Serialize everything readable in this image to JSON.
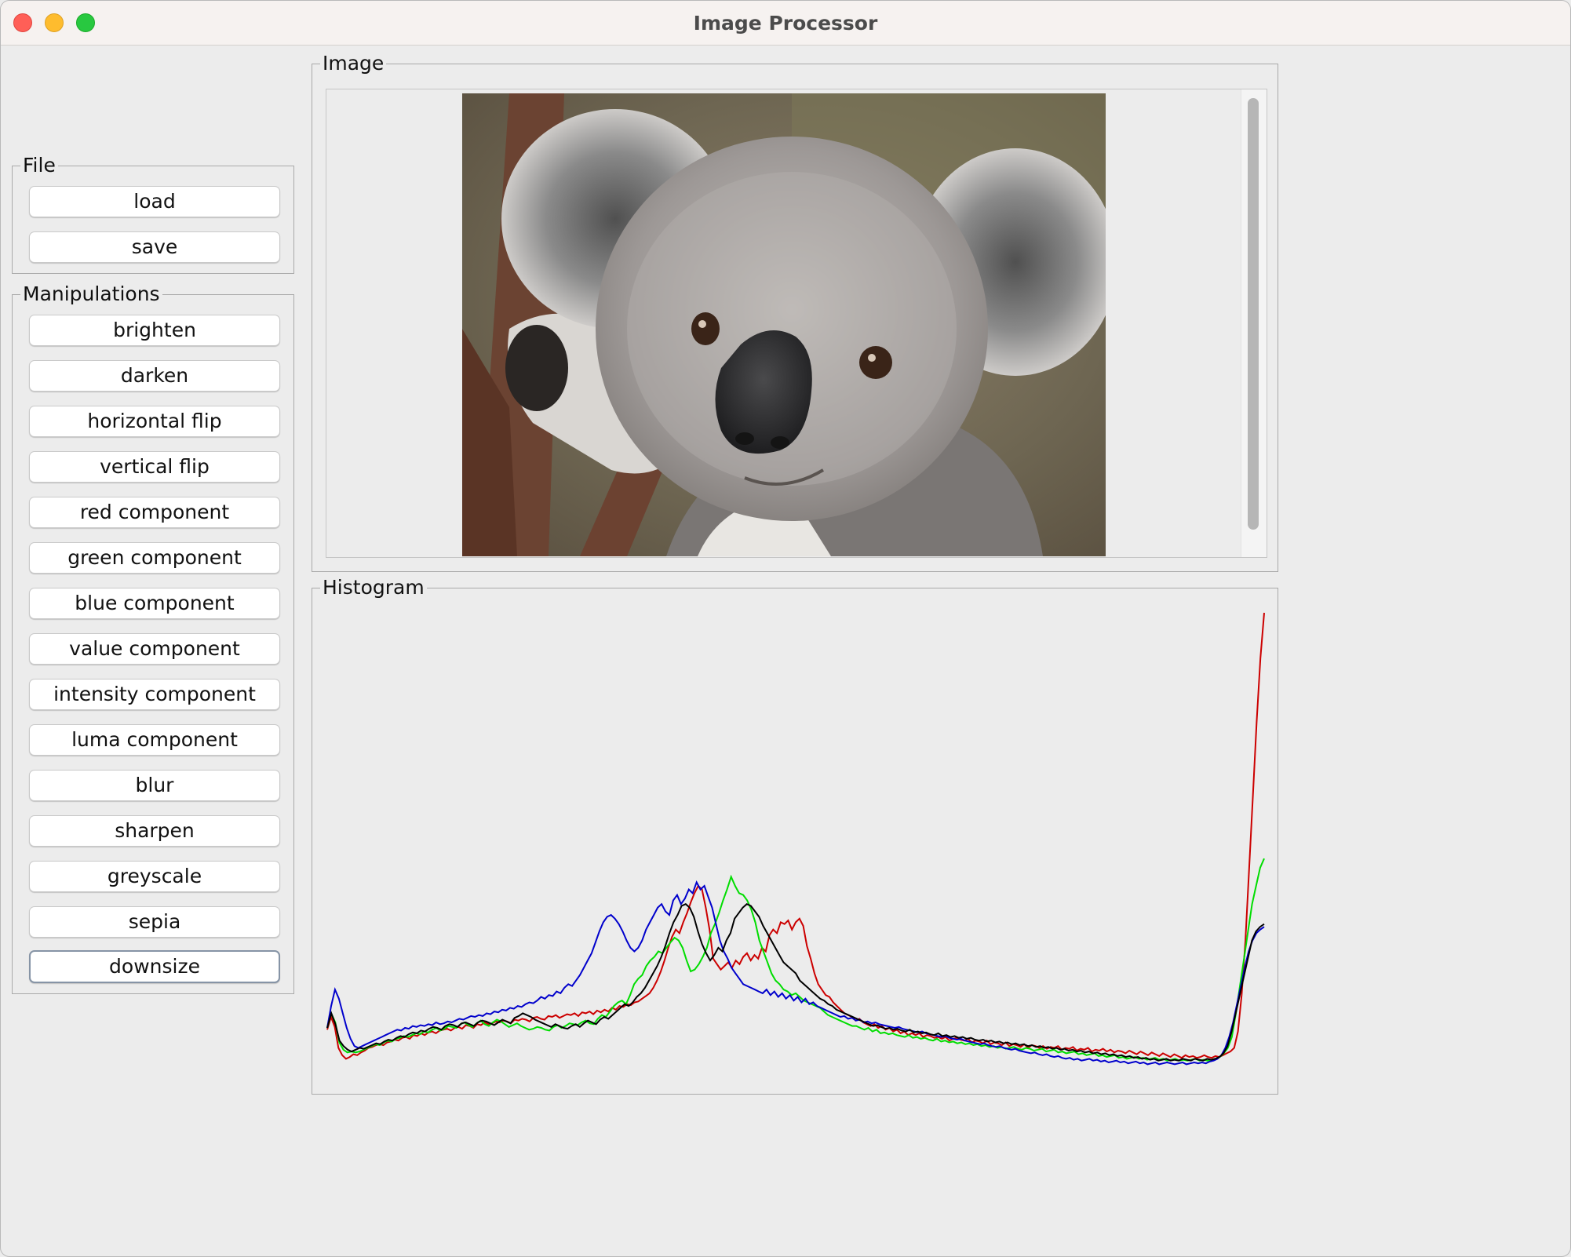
{
  "window": {
    "title": "Image Processor"
  },
  "file_group": {
    "title": "File",
    "buttons": [
      "load",
      "save"
    ]
  },
  "manipulations_group": {
    "title": "Manipulations",
    "buttons": [
      "brighten",
      "darken",
      "horizontal flip",
      "vertical flip",
      "red component",
      "green component",
      "blue component",
      "value component",
      "intensity component",
      "luma component",
      "blur",
      "sharpen",
      "greyscale",
      "sepia",
      "downsize"
    ],
    "focused": "downsize"
  },
  "image_panel": {
    "title": "Image",
    "image_subject": "koala photograph"
  },
  "histogram_panel": {
    "title": "Histogram"
  },
  "chart_data": {
    "type": "line",
    "xlim": [
      0,
      255
    ],
    "series": [
      {
        "color": "#cc0000",
        "values": [
          42,
          56,
          45,
          22,
          14,
          10,
          12,
          15,
          14,
          17,
          19,
          22,
          23,
          25,
          26,
          25,
          28,
          29,
          31,
          30,
          33,
          34,
          32,
          36,
          35,
          38,
          36,
          39,
          40,
          38,
          41,
          42,
          43,
          41,
          44,
          45,
          43,
          47,
          46,
          44,
          48,
          47,
          50,
          48,
          49,
          51,
          50,
          52,
          51,
          49,
          53,
          52,
          54,
          53,
          51,
          55,
          56,
          54,
          53,
          57,
          56,
          58,
          55,
          57,
          59,
          58,
          60,
          57,
          61,
          60,
          62,
          59,
          63,
          61,
          64,
          62,
          66,
          64,
          68,
          67,
          70,
          69,
          72,
          73,
          76,
          79,
          82,
          88,
          96,
          106,
          118,
          132,
          144,
          152,
          148,
          160,
          170,
          182,
          192,
          200,
          196,
          176,
          152,
          120,
          114,
          108,
          112,
          116,
          110,
          118,
          114,
          122,
          126,
          118,
          124,
          120,
          132,
          128,
          146,
          152,
          148,
          160,
          158,
          162,
          152,
          160,
          164,
          156,
          134,
          120,
          104,
          92,
          86,
          80,
          78,
          72,
          68,
          64,
          60,
          58,
          56,
          52,
          54,
          50,
          48,
          46,
          48,
          44,
          46,
          42,
          44,
          40,
          42,
          38,
          40,
          36,
          38,
          36,
          38,
          34,
          36,
          35,
          33,
          34,
          32,
          34,
          30,
          32,
          33,
          31,
          30,
          32,
          28,
          30,
          29,
          27,
          30,
          26,
          28,
          27,
          25,
          28,
          24,
          26,
          25,
          23,
          26,
          22,
          25,
          24,
          22,
          24,
          21,
          23,
          22,
          24,
          20,
          22,
          21,
          23,
          19,
          21,
          20,
          22,
          18,
          20,
          19,
          21,
          18,
          20,
          17,
          19,
          18,
          16,
          19,
          17,
          15,
          18,
          16,
          14,
          17,
          15,
          13,
          16,
          14,
          12,
          15,
          13,
          11,
          14,
          12,
          13,
          11,
          12,
          14,
          12,
          11,
          13,
          12,
          14,
          16,
          18,
          22,
          40,
          80,
          140,
          220,
          300,
          380,
          450,
          500
        ]
      },
      {
        "color": "#00dd00",
        "values": [
          44,
          60,
          50,
          28,
          20,
          17,
          18,
          17,
          18,
          20,
          22,
          24,
          26,
          25,
          28,
          30,
          29,
          32,
          33,
          35,
          34,
          36,
          38,
          37,
          40,
          39,
          42,
          44,
          41,
          43,
          46,
          45,
          44,
          48,
          50,
          47,
          45,
          49,
          52,
          48,
          46,
          50,
          53,
          51,
          48,
          45,
          47,
          49,
          46,
          44,
          42,
          43,
          45,
          44,
          42,
          41,
          45,
          47,
          44,
          46,
          49,
          48,
          47,
          50,
          52,
          49,
          48,
          54,
          58,
          56,
          62,
          68,
          72,
          74,
          70,
          80,
          92,
          98,
          102,
          112,
          118,
          122,
          128,
          126,
          132,
          138,
          143,
          140,
          132,
          118,
          106,
          108,
          114,
          122,
          132,
          148,
          158,
          170,
          184,
          196,
          210,
          200,
          192,
          190,
          184,
          174,
          160,
          140,
          128,
          116,
          104,
          96,
          92,
          86,
          84,
          80,
          82,
          78,
          74,
          72,
          70,
          68,
          66,
          62,
          58,
          56,
          54,
          52,
          50,
          48,
          46,
          46,
          44,
          42,
          44,
          40,
          42,
          38,
          39,
          37,
          38,
          36,
          35,
          34,
          36,
          33,
          34,
          32,
          33,
          31,
          30,
          32,
          29,
          30,
          28,
          29,
          27,
          28,
          26,
          27,
          25,
          26,
          24,
          25,
          23,
          24,
          22,
          23,
          21,
          22,
          23,
          21,
          20,
          22,
          21,
          19,
          20,
          21,
          18,
          19,
          20,
          17,
          18,
          16,
          17,
          18,
          15,
          16,
          14,
          15,
          16,
          13,
          14,
          12,
          13,
          14,
          11,
          12,
          10,
          11,
          12,
          10,
          11,
          9,
          10,
          11,
          9,
          10,
          8,
          9,
          10,
          8,
          9,
          8,
          9,
          10,
          8,
          9,
          8,
          9,
          10,
          12,
          16,
          22,
          34,
          60,
          90,
          120,
          150,
          180,
          200,
          220,
          230
        ]
      },
      {
        "color": "#0000cc",
        "values": [
          44,
          68,
          86,
          76,
          60,
          44,
          32,
          24,
          22,
          24,
          26,
          28,
          30,
          32,
          34,
          36,
          38,
          40,
          42,
          41,
          44,
          43,
          46,
          45,
          47,
          46,
          48,
          47,
          50,
          48,
          49,
          51,
          50,
          52,
          54,
          53,
          55,
          57,
          56,
          58,
          57,
          60,
          59,
          62,
          61,
          64,
          63,
          66,
          65,
          68,
          67,
          70,
          72,
          71,
          74,
          78,
          76,
          80,
          79,
          84,
          82,
          88,
          92,
          90,
          96,
          102,
          110,
          118,
          126,
          138,
          150,
          160,
          166,
          168,
          164,
          158,
          150,
          140,
          132,
          128,
          132,
          140,
          152,
          160,
          168,
          176,
          180,
          172,
          168,
          184,
          190,
          180,
          186,
          196,
          192,
          204,
          196,
          200,
          188,
          176,
          158,
          140,
          128,
          120,
          110,
          104,
          98,
          92,
          90,
          88,
          86,
          84,
          82,
          86,
          80,
          84,
          78,
          82,
          76,
          80,
          74,
          78,
          72,
          76,
          70,
          72,
          68,
          66,
          64,
          62,
          60,
          58,
          56,
          57,
          54,
          55,
          52,
          53,
          50,
          51,
          49,
          50,
          48,
          47,
          46,
          45,
          44,
          45,
          43,
          42,
          41,
          40,
          39,
          40,
          38,
          37,
          36,
          35,
          34,
          35,
          33,
          32,
          31,
          32,
          30,
          29,
          28,
          27,
          26,
          27,
          25,
          24,
          23,
          24,
          22,
          21,
          20,
          21,
          19,
          18,
          17,
          16,
          17,
          15,
          14,
          15,
          13,
          12,
          13,
          11,
          10,
          11,
          9,
          10,
          8,
          9,
          10,
          8,
          9,
          7,
          8,
          6,
          7,
          8,
          6,
          7,
          5,
          6,
          7,
          5,
          6,
          4,
          5,
          6,
          4,
          5,
          6,
          5,
          4,
          5,
          6,
          4,
          5,
          6,
          5,
          6,
          5,
          7,
          8,
          10,
          14,
          22,
          34,
          50,
          70,
          90,
          110,
          128,
          140,
          148,
          152,
          155
        ]
      },
      {
        "color": "#000000",
        "values": [
          44,
          60,
          48,
          30,
          24,
          20,
          18,
          20,
          22,
          21,
          23,
          25,
          27,
          26,
          29,
          31,
          30,
          33,
          35,
          34,
          37,
          39,
          38,
          41,
          40,
          43,
          45,
          44,
          42,
          46,
          48,
          47,
          45,
          49,
          50,
          48,
          46,
          50,
          52,
          51,
          49,
          47,
          50,
          53,
          51,
          49,
          55,
          57,
          60,
          58,
          56,
          53,
          51,
          49,
          47,
          45,
          48,
          46,
          44,
          43,
          46,
          48,
          45,
          49,
          52,
          50,
          48,
          53,
          56,
          54,
          58,
          62,
          66,
          70,
          68,
          72,
          78,
          82,
          88,
          96,
          104,
          112,
          122,
          134,
          148,
          160,
          168,
          178,
          180,
          176,
          166,
          150,
          136,
          126,
          118,
          124,
          132,
          128,
          140,
          148,
          164,
          170,
          176,
          180,
          178,
          172,
          166,
          156,
          148,
          140,
          132,
          124,
          116,
          112,
          108,
          104,
          96,
          92,
          88,
          84,
          80,
          76,
          74,
          70,
          68,
          64,
          62,
          60,
          58,
          56,
          54,
          52,
          50,
          48,
          46,
          47,
          45,
          43,
          44,
          42,
          43,
          41,
          40,
          42,
          39,
          40,
          38,
          39,
          37,
          36,
          38,
          35,
          36,
          34,
          35,
          33,
          34,
          32,
          33,
          31,
          30,
          31,
          29,
          30,
          28,
          29,
          27,
          28,
          26,
          27,
          25,
          26,
          24,
          25,
          23,
          24,
          22,
          23,
          21,
          22,
          20,
          21,
          19,
          20,
          18,
          19,
          17,
          18,
          16,
          17,
          15,
          16,
          14,
          15,
          13,
          14,
          12,
          13,
          11,
          12,
          10,
          11,
          9,
          10,
          8,
          9,
          10,
          8,
          9,
          8,
          10,
          9,
          8,
          10,
          9,
          8,
          10,
          9,
          10,
          12,
          16,
          24,
          40,
          60,
          80,
          100,
          120,
          140,
          150,
          155,
          158
        ]
      }
    ]
  }
}
